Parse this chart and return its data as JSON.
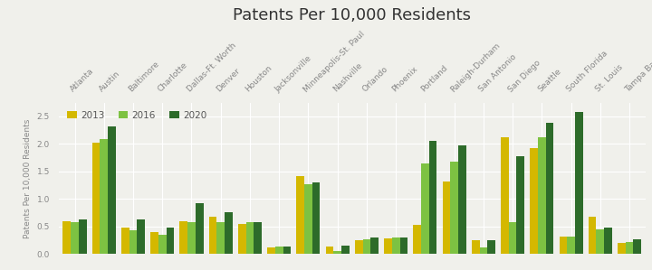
{
  "title": "Patents Per 10,000 Residents",
  "ylabel": "Patents Per 10,000 Residents",
  "categories": [
    "Atlanta",
    "Austin",
    "Baltimore",
    "Charlotte",
    "Dallas-Ft. Worth",
    "Denver",
    "Houston",
    "Jacksonville",
    "Minneapolis-St. Paul",
    "Nashville",
    "Orlando",
    "Phoenix",
    "Portland",
    "Raleigh-Durham",
    "San Antonio",
    "San Diego",
    "Seattle",
    "South Florida",
    "St. Louis",
    "Tampa Bay"
  ],
  "years": [
    "2013",
    "2016",
    "2020"
  ],
  "colors": [
    "#d4b800",
    "#7dc242",
    "#2d6b2a"
  ],
  "values_2013": [
    0.6,
    2.02,
    0.48,
    0.4,
    0.6,
    0.68,
    0.55,
    0.12,
    1.42,
    0.13,
    0.25,
    0.28,
    0.52,
    1.32,
    0.25,
    2.12,
    1.92,
    0.32,
    0.67,
    0.2
  ],
  "values_2016": [
    0.57,
    2.08,
    0.42,
    0.35,
    0.57,
    0.57,
    0.57,
    0.13,
    1.27,
    0.05,
    0.27,
    0.29,
    1.65,
    1.68,
    0.12,
    0.57,
    2.12,
    0.32,
    0.45,
    0.22
  ],
  "values_2020": [
    0.63,
    2.32,
    0.63,
    0.47,
    0.92,
    0.75,
    0.57,
    0.13,
    1.3,
    0.15,
    0.3,
    0.3,
    2.05,
    1.97,
    0.25,
    1.77,
    2.38,
    2.58,
    0.47,
    0.27
  ],
  "ylim": [
    0,
    2.75
  ],
  "yticks": [
    0.0,
    0.5,
    1.0,
    1.5,
    2.0,
    2.5
  ],
  "background_color": "#f0f0eb",
  "bar_width": 0.27,
  "title_fontsize": 13,
  "axis_label_fontsize": 6.5,
  "tick_label_fontsize": 6.5,
  "legend_fontsize": 7.5,
  "grid_color": "#ffffff",
  "spine_color": "#cccccc"
}
